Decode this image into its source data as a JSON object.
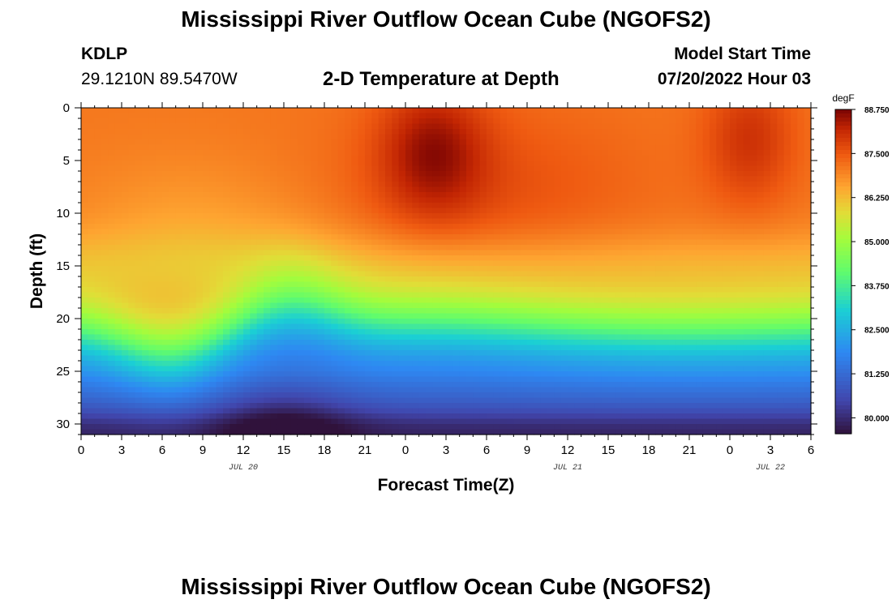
{
  "title": "Mississippi River Outflow Ocean Cube (NGOFS2)",
  "station": {
    "id": "KDLP",
    "coords": "29.1210N  89.5470W"
  },
  "subtitle": "2-D Temperature at Depth",
  "model_start": {
    "label": "Model Start Time",
    "value": "07/20/2022 Hour 03"
  },
  "footer_title": "Mississippi River Outflow Ocean Cube (NGOFS2)",
  "chart_data": {
    "type": "heatmap",
    "xlabel": "Forecast Time(Z)",
    "ylabel": "Depth (ft)",
    "x_tick_labels": [
      "0",
      "3",
      "6",
      "9",
      "12",
      "15",
      "18",
      "21",
      "0",
      "3",
      "6",
      "9",
      "12",
      "15",
      "18",
      "21",
      "0",
      "3",
      "6"
    ],
    "x_range_hours": [
      0,
      54
    ],
    "date_labels": [
      {
        "text": "JUL 20",
        "hour": 12
      },
      {
        "text": "JUL 21",
        "hour": 36
      },
      {
        "text": "JUL 22",
        "hour": 51
      }
    ],
    "y_tick_labels": [
      "0",
      "5",
      "10",
      "15",
      "20",
      "25",
      "30"
    ],
    "y_ticks": [
      0,
      5,
      10,
      15,
      20,
      25,
      30
    ],
    "y_range": [
      0,
      31
    ],
    "y_inverted": true,
    "colorbar": {
      "unit": "degF",
      "min": 79.55,
      "max": 88.75,
      "tick_values": [
        88.75,
        87.5,
        86.25,
        85.0,
        83.75,
        82.5,
        81.25,
        80.0
      ],
      "tick_labels": [
        "88.750",
        "87.500",
        "86.250",
        "85.000",
        "83.750",
        "82.500",
        "81.250",
        "80.000"
      ]
    },
    "surface_temp_description": "Warm layer ~86.5-88.7 degF from surface to ~15 ft; thermocline deepening near hour 6-8 (to ~23 ft) and shoaling near hour 15 (to ~18 ft); cold bottom ~79.6-80.5 degF near 30 ft"
  }
}
